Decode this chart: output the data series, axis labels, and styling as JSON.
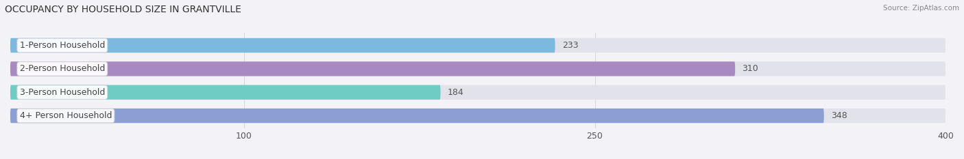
{
  "title": "OCCUPANCY BY HOUSEHOLD SIZE IN GRANTVILLE",
  "source_text": "Source: ZipAtlas.com",
  "categories": [
    "1-Person Household",
    "2-Person Household",
    "3-Person Household",
    "4+ Person Household"
  ],
  "values": [
    233,
    310,
    184,
    348
  ],
  "bar_colors": [
    "#7db8df",
    "#a98ac0",
    "#6eccc4",
    "#8b9fd4"
  ],
  "xlim": [
    0,
    400
  ],
  "xticks": [
    100,
    250,
    400
  ],
  "background_color": "#f2f2f7",
  "bar_background_color": "#e2e2ea",
  "bar_height": 0.62,
  "title_fontsize": 10,
  "tick_fontsize": 9,
  "value_fontsize": 9,
  "category_fontsize": 9
}
